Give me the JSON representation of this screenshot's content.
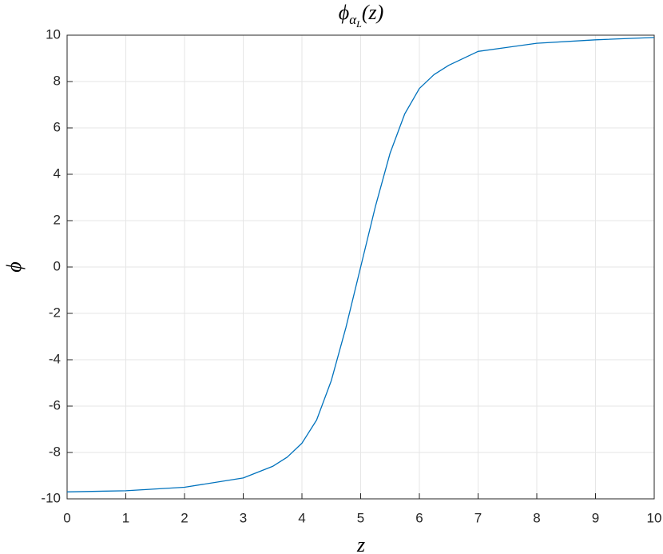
{
  "chart_data": {
    "type": "line",
    "title": [
      "ϕ",
      "α",
      "L",
      "(z)"
    ],
    "xlabel": "z",
    "ylabel": "ϕ",
    "x": [
      0,
      1,
      2,
      3,
      3.5,
      3.75,
      4,
      4.25,
      4.5,
      4.75,
      5,
      5.25,
      5.5,
      5.75,
      6,
      6.25,
      6.5,
      7,
      8,
      9,
      10
    ],
    "series": [
      {
        "color": "#0072bd",
        "values": [
          -9.7,
          -9.65,
          -9.5,
          -9.1,
          -8.6,
          -8.2,
          -7.6,
          -6.6,
          -4.9,
          -2.6,
          0,
          2.6,
          4.9,
          6.6,
          7.7,
          8.3,
          8.7,
          9.3,
          9.65,
          9.8,
          9.9
        ]
      }
    ],
    "xlim": [
      0,
      10
    ],
    "xticks": [
      0,
      1,
      2,
      3,
      4,
      5,
      6,
      7,
      8,
      9,
      10
    ],
    "ylim": [
      -10,
      10
    ],
    "yticks": [
      -10,
      -8,
      -6,
      -4,
      -2,
      0,
      2,
      4,
      6,
      8,
      10
    ],
    "grid": true
  }
}
